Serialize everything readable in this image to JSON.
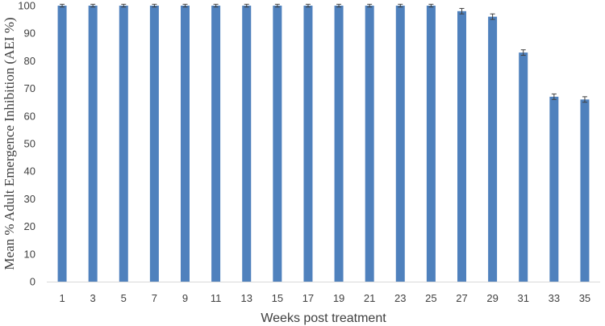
{
  "chart_data": {
    "type": "bar",
    "title": "",
    "xlabel": "Weeks post treatment",
    "ylabel": "Mean % Adult Emergence Inhibition (AEI %)",
    "categories": [
      "1",
      "3",
      "5",
      "7",
      "9",
      "11",
      "13",
      "15",
      "17",
      "19",
      "21",
      "23",
      "25",
      "27",
      "29",
      "31",
      "33",
      "35"
    ],
    "values": [
      100,
      100,
      100,
      100,
      100,
      100,
      100,
      100,
      100,
      100,
      100,
      100,
      100,
      98,
      96,
      83,
      67,
      66
    ],
    "errors": [
      0.5,
      0.5,
      0.5,
      0.5,
      0.5,
      0.5,
      0.5,
      0.5,
      0.5,
      0.5,
      0.5,
      0.5,
      0.5,
      1.0,
      1.0,
      1.0,
      1.0,
      1.0
    ],
    "ylim": [
      0,
      100
    ],
    "yticks": [
      0,
      10,
      20,
      30,
      40,
      50,
      60,
      70,
      80,
      90,
      100
    ],
    "grid": false,
    "legend": "none",
    "colors": {
      "bar": "#4f81bd",
      "axis": "#d9d9d9",
      "error_bar": "#404040"
    }
  }
}
